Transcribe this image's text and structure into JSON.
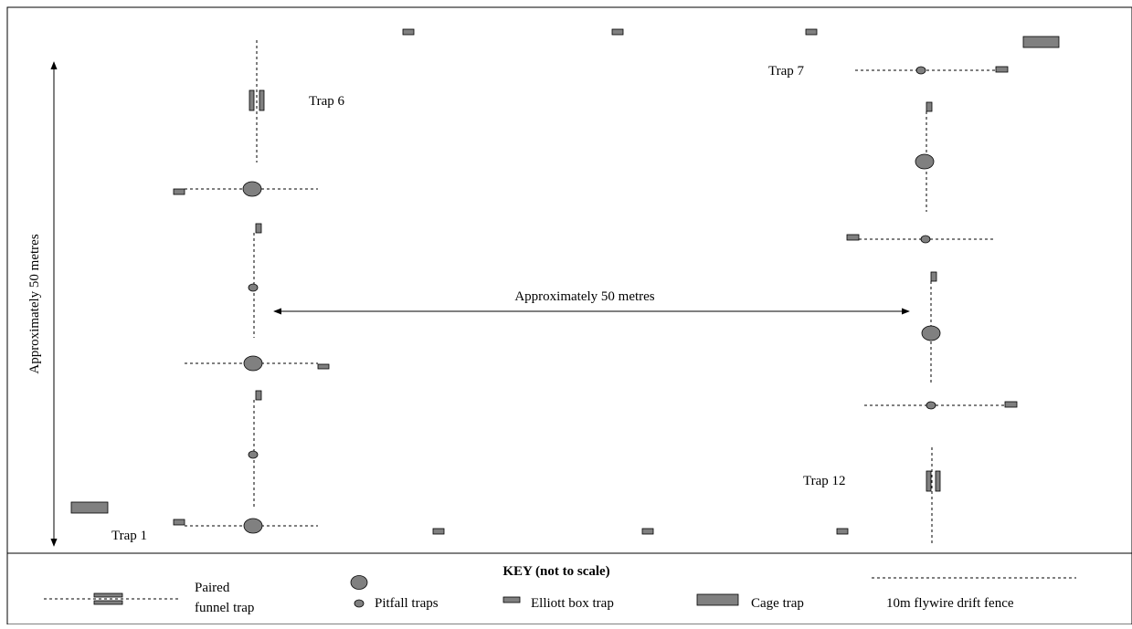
{
  "labels": {
    "trap1": "Trap 1",
    "trap6": "Trap 6",
    "trap7": "Trap 7",
    "trap12": "Trap 12",
    "horizontal_distance": "Approximately 50 metres",
    "vertical_distance": "Approximately 50 metres"
  },
  "key": {
    "title": "KEY (not to scale)",
    "paired_funnel_line1": "Paired",
    "paired_funnel_line2": "funnel trap",
    "pitfall": "Pitfall traps",
    "elliott": "Elliott box trap",
    "cage": "Cage trap",
    "fence": "10m flywire drift fence"
  },
  "colors": {
    "trap_fill": "#808080",
    "stroke": "#000000",
    "background": "#ffffff"
  },
  "icons": {
    "paired_funnel": "paired-funnel-trap-icon",
    "pitfall": "pitfall-trap-icon",
    "elliott": "elliott-box-trap-icon",
    "cage": "cage-trap-icon",
    "fence": "drift-fence-icon"
  }
}
